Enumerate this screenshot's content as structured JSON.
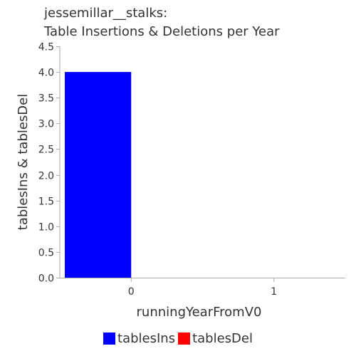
{
  "title_lines": [
    "jessemillar__stalks:",
    "Table Insertions & Deletions per Year"
  ],
  "colors": {
    "tablesIns": "#0000ff",
    "tablesDel": "#ff0000",
    "axis": "#aaaaaa",
    "text": "#333333"
  },
  "chart_data": {
    "type": "bar",
    "title": "jessemillar__stalks: Table Insertions & Deletions per Year",
    "xlabel": "runningYearFromV0",
    "ylabel": "tablesIns & tablesDel",
    "categories": [
      "0",
      "1"
    ],
    "series": [
      {
        "name": "tablesIns",
        "values": [
          4,
          0
        ]
      },
      {
        "name": "tablesDel",
        "values": [
          0,
          0
        ]
      }
    ],
    "ylim": [
      0,
      4.5
    ],
    "yticks": [
      "0.0",
      "0.5",
      "1.0",
      "1.5",
      "2.0",
      "2.5",
      "3.0",
      "3.5",
      "4.0",
      "4.5"
    ],
    "grid": false,
    "legend": "bottom"
  }
}
